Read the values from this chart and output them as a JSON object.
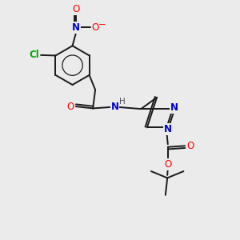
{
  "background_color": "#ebebeb",
  "figsize": [
    3.0,
    3.0
  ],
  "dpi": 100,
  "bond_color": "#1a1a1a",
  "bond_width": 1.4,
  "colors": {
    "N": "#0000cc",
    "O": "#ff0000",
    "Cl": "#00aa00",
    "N_nitro": "#0000cc",
    "H": "#555555"
  }
}
